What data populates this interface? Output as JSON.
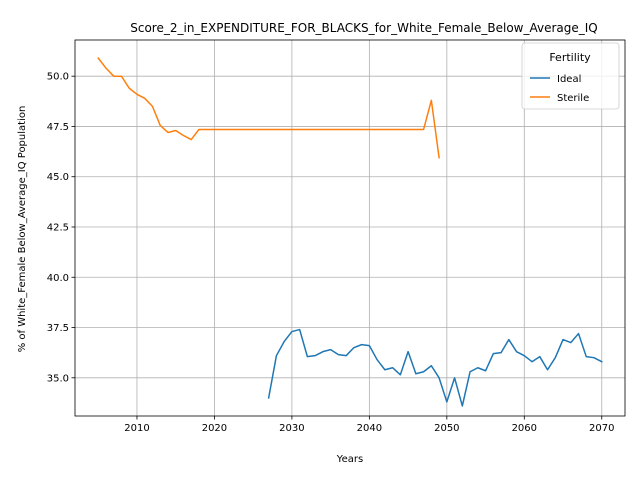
{
  "chart_data": {
    "type": "line",
    "title": "Score_2_in_EXPENDITURE_FOR_BLACKS_for_White_Female_Below_Average_IQ",
    "xlabel": "Years",
    "ylabel": "% of White_Female Below_Average_IQ Population",
    "xlim": [
      2002,
      2073
    ],
    "ylim": [
      33.1,
      51.8
    ],
    "xticks": [
      2010,
      2020,
      2030,
      2040,
      2050,
      2060,
      2070
    ],
    "yticks": [
      35.0,
      37.5,
      40.0,
      42.5,
      45.0,
      47.5,
      50.0
    ],
    "ytick_labels": [
      "35.0",
      "37.5",
      "40.0",
      "42.5",
      "45.0",
      "47.5",
      "50.0"
    ],
    "grid": true,
    "legend": {
      "title": "Fertility",
      "position": "top-right"
    },
    "series": [
      {
        "name": "Ideal",
        "color": "#1f77b4",
        "x": [
          2027,
          2028,
          2029,
          2030,
          2031,
          2032,
          2033,
          2034,
          2035,
          2036,
          2037,
          2038,
          2039,
          2040,
          2041,
          2042,
          2043,
          2044,
          2045,
          2046,
          2047,
          2048,
          2049,
          2050,
          2051,
          2052,
          2053,
          2054,
          2055,
          2056,
          2057,
          2058,
          2059,
          2060,
          2061,
          2062,
          2063,
          2064,
          2065,
          2066,
          2067,
          2068,
          2069,
          2070
        ],
        "y": [
          34.0,
          36.1,
          36.8,
          37.3,
          37.4,
          36.05,
          36.1,
          36.3,
          36.4,
          36.15,
          36.1,
          36.5,
          36.65,
          36.6,
          35.9,
          35.4,
          35.5,
          35.15,
          36.3,
          35.2,
          35.3,
          35.6,
          35.0,
          33.8,
          35.0,
          33.6,
          35.3,
          35.5,
          35.35,
          36.2,
          36.25,
          36.9,
          36.3,
          36.1,
          35.8,
          36.05,
          35.4,
          36.0,
          36.9,
          36.75,
          37.2,
          36.05,
          36.0,
          35.8
        ]
      },
      {
        "name": "Sterile",
        "color": "#ff7f0e",
        "x": [
          2005,
          2006,
          2007,
          2008,
          2009,
          2010,
          2011,
          2012,
          2013,
          2014,
          2015,
          2016,
          2017,
          2018,
          2019,
          2020,
          2025,
          2030,
          2035,
          2040,
          2045,
          2047,
          2048,
          2049
        ],
        "y": [
          50.9,
          50.4,
          50.0,
          50.0,
          49.4,
          49.1,
          48.9,
          48.5,
          47.55,
          47.2,
          47.3,
          47.05,
          46.85,
          47.35,
          47.35,
          47.35,
          47.35,
          47.35,
          47.35,
          47.35,
          47.35,
          47.35,
          48.8,
          45.95
        ]
      }
    ]
  }
}
